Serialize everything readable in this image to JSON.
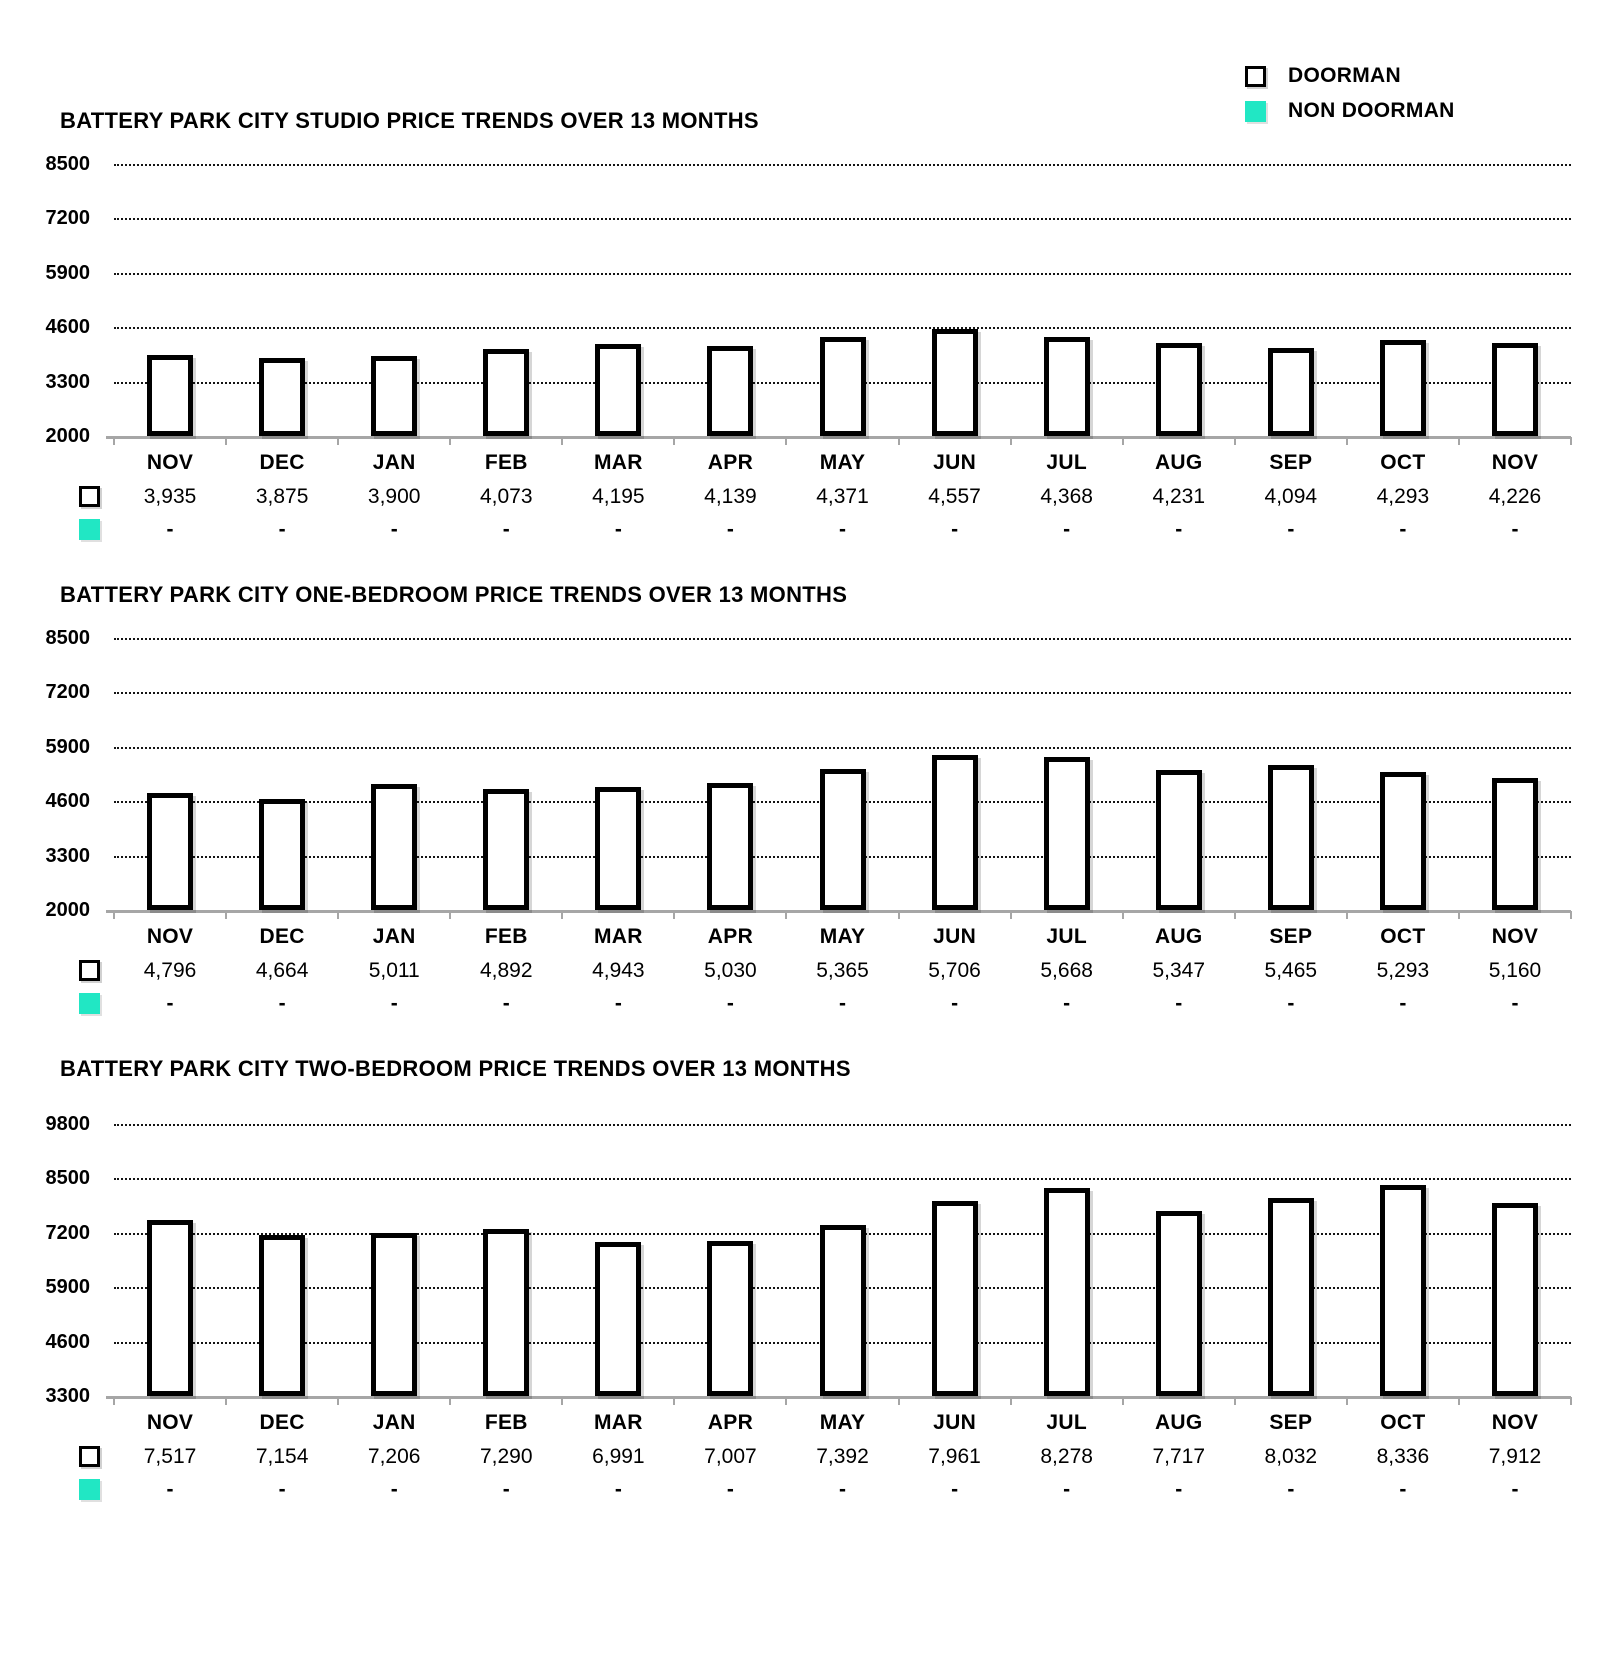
{
  "legend": {
    "doorman_label": "DOORMAN",
    "non_doorman_label": "NON DOORMAN",
    "doorman_color": "#ffffff",
    "non_doorman_color": "#21e7c4"
  },
  "chart_data": [
    {
      "type": "bar",
      "title": "BATTERY PARK CITY STUDIO PRICE TRENDS OVER 13 MONTHS",
      "categories": [
        "NOV",
        "DEC",
        "JAN",
        "FEB",
        "MAR",
        "APR",
        "MAY",
        "JUN",
        "JUL",
        "AUG",
        "SEP",
        "OCT",
        "NOV"
      ],
      "series": [
        {
          "name": "DOORMAN",
          "values": [
            3935,
            3875,
            3900,
            4073,
            4195,
            4139,
            4371,
            4557,
            4368,
            4231,
            4094,
            4293,
            4226
          ],
          "labels": [
            "3,935",
            "3,875",
            "3,900",
            "4,073",
            "4,195",
            "4,139",
            "4,371",
            "4,557",
            "4,368",
            "4,231",
            "4,094",
            "4,293",
            "4,226"
          ]
        },
        {
          "name": "NON DOORMAN",
          "values": null,
          "labels": [
            "-",
            "-",
            "-",
            "-",
            "-",
            "-",
            "-",
            "-",
            "-",
            "-",
            "-",
            "-",
            "-"
          ]
        }
      ],
      "ylim": [
        2000,
        8500
      ],
      "yticks": [
        8500,
        7200,
        5900,
        4600,
        3300,
        2000
      ],
      "grid": "dotted-horizontal",
      "legend_position": "top-right"
    },
    {
      "type": "bar",
      "title": "BATTERY PARK CITY ONE-BEDROOM PRICE TRENDS OVER 13 MONTHS",
      "categories": [
        "NOV",
        "DEC",
        "JAN",
        "FEB",
        "MAR",
        "APR",
        "MAY",
        "JUN",
        "JUL",
        "AUG",
        "SEP",
        "OCT",
        "NOV"
      ],
      "series": [
        {
          "name": "DOORMAN",
          "values": [
            4796,
            4664,
            5011,
            4892,
            4943,
            5030,
            5365,
            5706,
            5668,
            5347,
            5465,
            5293,
            5160
          ],
          "labels": [
            "4,796",
            "4,664",
            "5,011",
            "4,892",
            "4,943",
            "5,030",
            "5,365",
            "5,706",
            "5,668",
            "5,347",
            "5,465",
            "5,293",
            "5,160"
          ]
        },
        {
          "name": "NON DOORMAN",
          "values": null,
          "labels": [
            "-",
            "-",
            "-",
            "-",
            "-",
            "-",
            "-",
            "-",
            "-",
            "-",
            "-",
            "-",
            "-"
          ]
        }
      ],
      "ylim": [
        2000,
        8500
      ],
      "yticks": [
        8500,
        7200,
        5900,
        4600,
        3300,
        2000
      ],
      "grid": "dotted-horizontal",
      "legend_position": "top-right"
    },
    {
      "type": "bar",
      "title": "BATTERY PARK CITY TWO-BEDROOM PRICE TRENDS OVER 13 MONTHS",
      "categories": [
        "NOV",
        "DEC",
        "JAN",
        "FEB",
        "MAR",
        "APR",
        "MAY",
        "JUN",
        "JUL",
        "AUG",
        "SEP",
        "OCT",
        "NOV"
      ],
      "series": [
        {
          "name": "DOORMAN",
          "values": [
            7517,
            7154,
            7206,
            7290,
            6991,
            7007,
            7392,
            7961,
            8278,
            7717,
            8032,
            8336,
            7912
          ],
          "labels": [
            "7,517",
            "7,154",
            "7,206",
            "7,290",
            "6,991",
            "7,007",
            "7,392",
            "7,961",
            "8,278",
            "7,717",
            "8,032",
            "8,336",
            "7,912"
          ]
        },
        {
          "name": "NON DOORMAN",
          "values": null,
          "labels": [
            "-",
            "-",
            "-",
            "-",
            "-",
            "-",
            "-",
            "-",
            "-",
            "-",
            "-",
            "-",
            "-"
          ]
        }
      ],
      "ylim": [
        3300,
        9800
      ],
      "yticks": [
        9800,
        8500,
        7200,
        5900,
        4600,
        3300
      ],
      "grid": "dotted-horizontal",
      "legend_position": "top-right"
    }
  ]
}
